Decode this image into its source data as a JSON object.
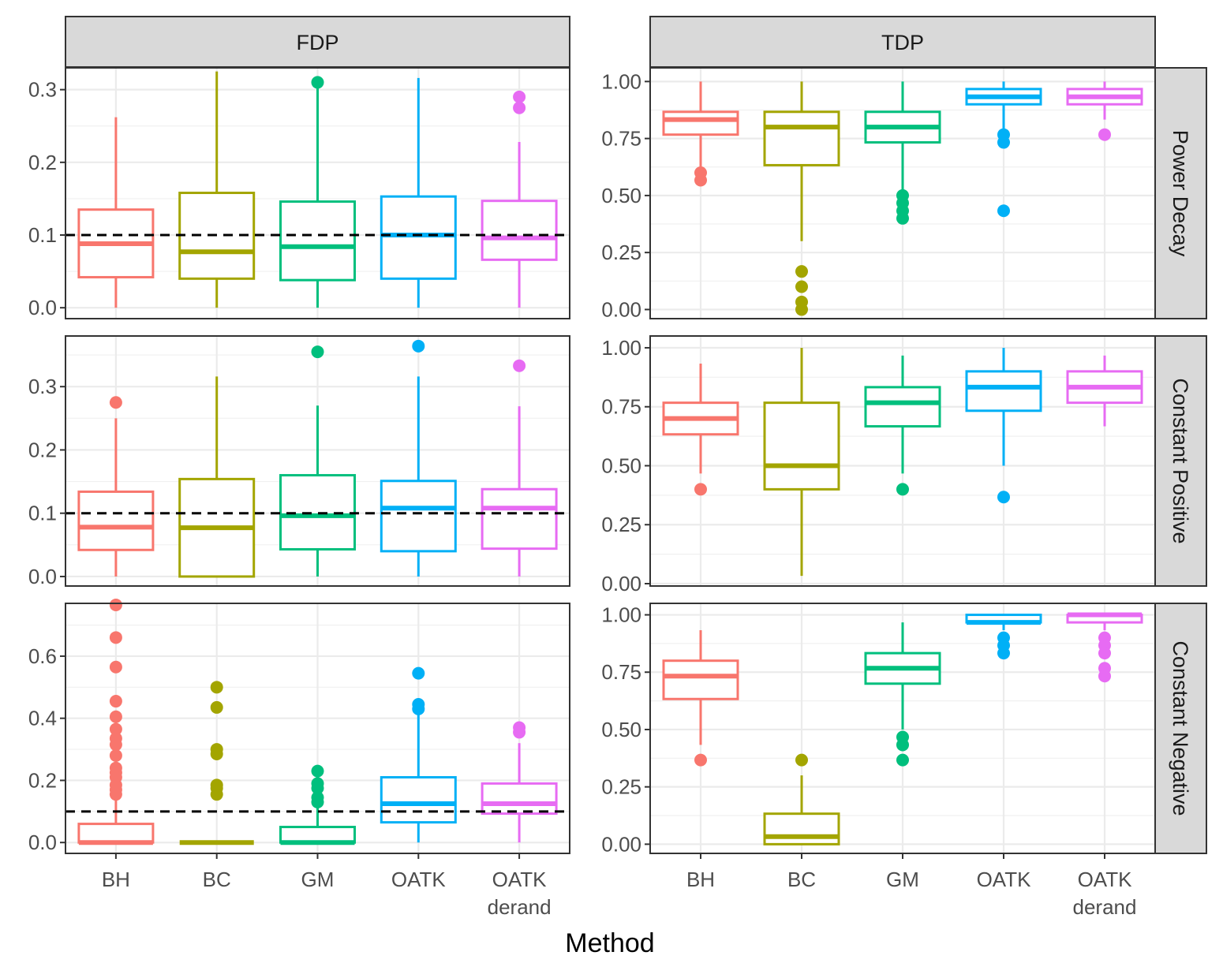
{
  "chart_data": {
    "type": "box",
    "xlabel": "Method",
    "methods": [
      "BH",
      "BC",
      "GM",
      "OATK",
      "OATK\nderand"
    ],
    "method_colors": [
      "#F8766D",
      "#A3A500",
      "#00BF7D",
      "#00B0F6",
      "#E76BF3"
    ],
    "columns": [
      "FDP",
      "TDP"
    ],
    "rows": [
      "Power Decay",
      "Constant Positive",
      "Constant Negative"
    ],
    "reference_line": {
      "column": "FDP",
      "value": 0.1,
      "style": "dashed"
    },
    "axis_ticks": {
      "FDP": [
        {
          "values": [
            0.0,
            0.1,
            0.2,
            0.3
          ],
          "labels": [
            "0.0",
            "0.1",
            "0.2",
            "0.3"
          ]
        },
        {
          "values": [
            0.0,
            0.1,
            0.2,
            0.3
          ],
          "labels": [
            "0.0",
            "0.1",
            "0.2",
            "0.3"
          ]
        },
        {
          "values": [
            0.0,
            0.2,
            0.4,
            0.6
          ],
          "labels": [
            "0.0",
            "0.2",
            "0.4",
            "0.6"
          ]
        }
      ],
      "TDP": [
        {
          "values": [
            0.0,
            0.25,
            0.5,
            0.75,
            1.0
          ],
          "labels": [
            "0.00",
            "0.25",
            "0.50",
            "0.75",
            "1.00"
          ]
        },
        {
          "values": [
            0.0,
            0.25,
            0.5,
            0.75,
            1.0
          ],
          "labels": [
            "0.00",
            "0.25",
            "0.50",
            "0.75",
            "1.00"
          ]
        },
        {
          "values": [
            0.0,
            0.25,
            0.5,
            0.75,
            1.0
          ],
          "labels": [
            "0.00",
            "0.25",
            "0.50",
            "0.75",
            "1.00"
          ]
        }
      ]
    },
    "ylim": {
      "FDP": [
        [
          -0.015,
          0.33
        ],
        [
          -0.015,
          0.38
        ],
        [
          -0.035,
          0.77
        ]
      ],
      "TDP": [
        [
          -0.04,
          1.06
        ],
        [
          -0.01,
          1.05
        ],
        [
          -0.04,
          1.05
        ]
      ]
    },
    "panels": [
      {
        "row": "Power Decay",
        "column": "FDP",
        "boxes": [
          {
            "method": "BH",
            "min": 0.0,
            "q1": 0.042,
            "median": 0.088,
            "q3": 0.135,
            "max": 0.262,
            "outliers": []
          },
          {
            "method": "BC",
            "min": 0.0,
            "q1": 0.04,
            "median": 0.077,
            "q3": 0.158,
            "max": 0.325,
            "outliers": []
          },
          {
            "method": "GM",
            "min": 0.0,
            "q1": 0.038,
            "median": 0.084,
            "q3": 0.146,
            "max": 0.31,
            "outliers": [
              0.31
            ]
          },
          {
            "method": "OATK",
            "min": 0.0,
            "q1": 0.04,
            "median": 0.1,
            "q3": 0.153,
            "max": 0.316,
            "outliers": []
          },
          {
            "method": "OATK derand",
            "min": 0.0,
            "q1": 0.066,
            "median": 0.096,
            "q3": 0.147,
            "max": 0.228,
            "outliers": [
              0.29,
              0.275
            ]
          }
        ]
      },
      {
        "row": "Power Decay",
        "column": "TDP",
        "boxes": [
          {
            "method": "BH",
            "min": 0.6,
            "q1": 0.767,
            "median": 0.833,
            "q3": 0.867,
            "max": 1.0,
            "outliers": [
              0.6,
              0.567
            ]
          },
          {
            "method": "BC",
            "min": 0.3,
            "q1": 0.633,
            "median": 0.8,
            "q3": 0.867,
            "max": 1.0,
            "outliers": [
              0.167,
              0.1,
              0.033,
              0.0
            ]
          },
          {
            "method": "GM",
            "min": 0.5,
            "q1": 0.733,
            "median": 0.8,
            "q3": 0.867,
            "max": 1.0,
            "outliers": [
              0.5,
              0.467,
              0.433,
              0.4
            ]
          },
          {
            "method": "OATK",
            "min": 0.767,
            "q1": 0.9,
            "median": 0.933,
            "q3": 0.967,
            "max": 1.0,
            "outliers": [
              0.767,
              0.733,
              0.433
            ]
          },
          {
            "method": "OATK derand",
            "min": 0.833,
            "q1": 0.9,
            "median": 0.933,
            "q3": 0.967,
            "max": 1.0,
            "outliers": [
              0.767
            ]
          }
        ]
      },
      {
        "row": "Constant Positive",
        "column": "FDP",
        "boxes": [
          {
            "method": "BH",
            "min": 0.0,
            "q1": 0.042,
            "median": 0.078,
            "q3": 0.134,
            "max": 0.25,
            "outliers": [
              0.275
            ]
          },
          {
            "method": "BC",
            "min": 0.0,
            "q1": 0.0,
            "median": 0.077,
            "q3": 0.154,
            "max": 0.316,
            "outliers": []
          },
          {
            "method": "GM",
            "min": 0.0,
            "q1": 0.043,
            "median": 0.096,
            "q3": 0.16,
            "max": 0.27,
            "outliers": [
              0.355
            ]
          },
          {
            "method": "OATK",
            "min": 0.0,
            "q1": 0.04,
            "median": 0.108,
            "q3": 0.151,
            "max": 0.316,
            "outliers": [
              0.364
            ]
          },
          {
            "method": "OATK derand",
            "min": 0.0,
            "q1": 0.044,
            "median": 0.108,
            "q3": 0.138,
            "max": 0.269,
            "outliers": [
              0.333
            ]
          }
        ]
      },
      {
        "row": "Constant Positive",
        "column": "TDP",
        "boxes": [
          {
            "method": "BH",
            "min": 0.467,
            "q1": 0.633,
            "median": 0.7,
            "q3": 0.767,
            "max": 0.933,
            "outliers": [
              0.4
            ]
          },
          {
            "method": "BC",
            "min": 0.033,
            "q1": 0.4,
            "median": 0.5,
            "q3": 0.767,
            "max": 1.0,
            "outliers": []
          },
          {
            "method": "GM",
            "min": 0.467,
            "q1": 0.667,
            "median": 0.767,
            "q3": 0.833,
            "max": 0.967,
            "outliers": [
              0.4
            ]
          },
          {
            "method": "OATK",
            "min": 0.5,
            "q1": 0.733,
            "median": 0.833,
            "q3": 0.9,
            "max": 1.0,
            "outliers": [
              0.367
            ]
          },
          {
            "method": "OATK derand",
            "min": 0.667,
            "q1": 0.767,
            "median": 0.833,
            "q3": 0.9,
            "max": 0.967,
            "outliers": []
          }
        ]
      },
      {
        "row": "Constant Negative",
        "column": "FDP",
        "boxes": [
          {
            "method": "BH",
            "min": 0.0,
            "q1": 0.0,
            "median": 0.0,
            "q3": 0.06,
            "max": 0.15,
            "outliers": [
              0.765,
              0.66,
              0.565,
              0.455,
              0.405,
              0.365,
              0.335,
              0.315,
              0.28,
              0.24,
              0.225,
              0.21,
              0.185,
              0.17,
              0.155
            ]
          },
          {
            "method": "BC",
            "min": 0.0,
            "q1": 0.0,
            "median": 0.0,
            "q3": 0.0,
            "max": 0.0,
            "outliers": [
              0.5,
              0.435,
              0.3,
              0.285,
              0.185,
              0.175,
              0.155
            ]
          },
          {
            "method": "GM",
            "min": 0.0,
            "q1": 0.0,
            "median": 0.0,
            "q3": 0.05,
            "max": 0.12,
            "outliers": [
              0.23,
              0.19,
              0.175,
              0.145,
              0.13
            ]
          },
          {
            "method": "OATK",
            "min": 0.0,
            "q1": 0.065,
            "median": 0.125,
            "q3": 0.21,
            "max": 0.415,
            "outliers": [
              0.545,
              0.445,
              0.43
            ]
          },
          {
            "method": "OATK derand",
            "min": 0.0,
            "q1": 0.093,
            "median": 0.125,
            "q3": 0.19,
            "max": 0.32,
            "outliers": [
              0.37,
              0.355
            ]
          }
        ]
      },
      {
        "row": "Constant Negative",
        "column": "TDP",
        "boxes": [
          {
            "method": "BH",
            "min": 0.433,
            "q1": 0.633,
            "median": 0.733,
            "q3": 0.8,
            "max": 0.933,
            "outliers": [
              0.367
            ]
          },
          {
            "method": "BC",
            "min": 0.0,
            "q1": 0.0,
            "median": 0.033,
            "q3": 0.133,
            "max": 0.3,
            "outliers": [
              0.367
            ]
          },
          {
            "method": "GM",
            "min": 0.5,
            "q1": 0.7,
            "median": 0.767,
            "q3": 0.833,
            "max": 0.967,
            "outliers": [
              0.467,
              0.433,
              0.367
            ]
          },
          {
            "method": "OATK",
            "min": 0.933,
            "q1": 0.967,
            "median": 0.967,
            "q3": 1.0,
            "max": 1.0,
            "outliers": [
              0.9,
              0.867,
              0.833
            ]
          },
          {
            "method": "OATK derand",
            "min": 0.933,
            "q1": 0.967,
            "median": 1.0,
            "q3": 1.0,
            "max": 1.0,
            "outliers": [
              0.9,
              0.867,
              0.833,
              0.767,
              0.733
            ]
          }
        ]
      }
    ]
  }
}
